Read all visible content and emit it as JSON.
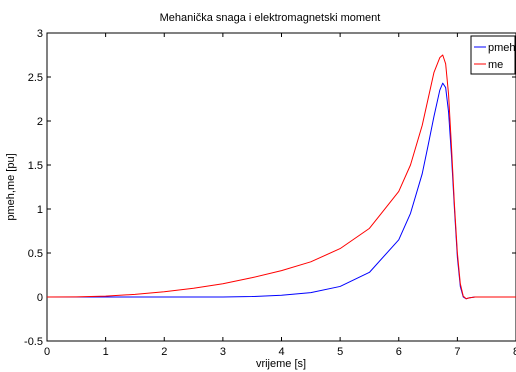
{
  "chart_data": {
    "type": "line",
    "title": "Mehanička snaga i elektromagnetski moment",
    "xlabel": "vrijeme [s]",
    "ylabel": "pmeh,me [pu]",
    "xlim": [
      0,
      8
    ],
    "ylim": [
      -0.5,
      3
    ],
    "xticks": [
      "0",
      "1",
      "2",
      "3",
      "4",
      "5",
      "6",
      "7",
      "8"
    ],
    "yticks": [
      "-0.5",
      "0",
      "0.5",
      "1",
      "1.5",
      "2",
      "2.5",
      "3"
    ],
    "grid": false,
    "legend_position": "top-right",
    "x": [
      0,
      0.5,
      1,
      1.5,
      2,
      2.5,
      3,
      3.5,
      4,
      4.5,
      5,
      5.5,
      6,
      6.2,
      6.4,
      6.5,
      6.6,
      6.7,
      6.75,
      6.8,
      6.85,
      6.9,
      6.95,
      7.0,
      7.05,
      7.1,
      7.15,
      7.2,
      7.3,
      7.5,
      8
    ],
    "series": [
      {
        "name": "pmeh",
        "color": "#0000ff",
        "values": [
          0,
          0,
          0,
          0,
          0,
          0,
          0,
          0.005,
          0.02,
          0.05,
          0.12,
          0.28,
          0.65,
          0.95,
          1.4,
          1.72,
          2.05,
          2.35,
          2.43,
          2.38,
          2.1,
          1.6,
          1.0,
          0.45,
          0.12,
          0.0,
          -0.02,
          -0.01,
          0,
          0,
          0
        ]
      },
      {
        "name": "me",
        "color": "#ff0000",
        "values": [
          0,
          0.002,
          0.01,
          0.03,
          0.06,
          0.1,
          0.15,
          0.22,
          0.3,
          0.4,
          0.55,
          0.78,
          1.2,
          1.5,
          1.95,
          2.25,
          2.55,
          2.72,
          2.75,
          2.65,
          2.3,
          1.7,
          1.05,
          0.5,
          0.15,
          0.01,
          -0.02,
          -0.01,
          0,
          0,
          0
        ]
      }
    ]
  }
}
